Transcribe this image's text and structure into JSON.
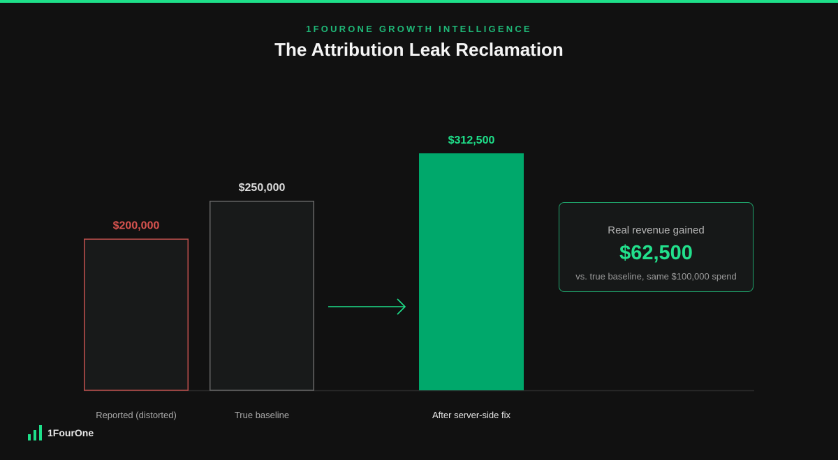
{
  "header": {
    "eyebrow": "1FOURONE GROWTH INTELLIGENCE",
    "title": "The Attribution Leak Reclamation"
  },
  "chart_data": {
    "type": "bar",
    "title": "The Attribution Leak Reclamation",
    "categories": [
      "Reported (distorted)",
      "True baseline",
      "After server-side fix"
    ],
    "values": [
      200000,
      250000,
      312500
    ],
    "value_labels": [
      "$200,000",
      "$250,000",
      "$312,500"
    ],
    "ylim": [
      0,
      312500
    ],
    "grid": false,
    "bar_styles": [
      "outline-red",
      "outline-gray",
      "filled-green"
    ]
  },
  "callout": {
    "label": "Real revenue gained",
    "value": "$62,500",
    "subtext": "vs. true baseline, same $100,000 spend"
  },
  "brand": {
    "name": "1FourOne"
  },
  "colors": {
    "background": "#111111",
    "accent": "#1ee08a",
    "accent_dark": "#00a86b",
    "reported_red": "#c0504d",
    "baseline_gray": "#666666",
    "bar_fill_dark": "#181a1a"
  }
}
